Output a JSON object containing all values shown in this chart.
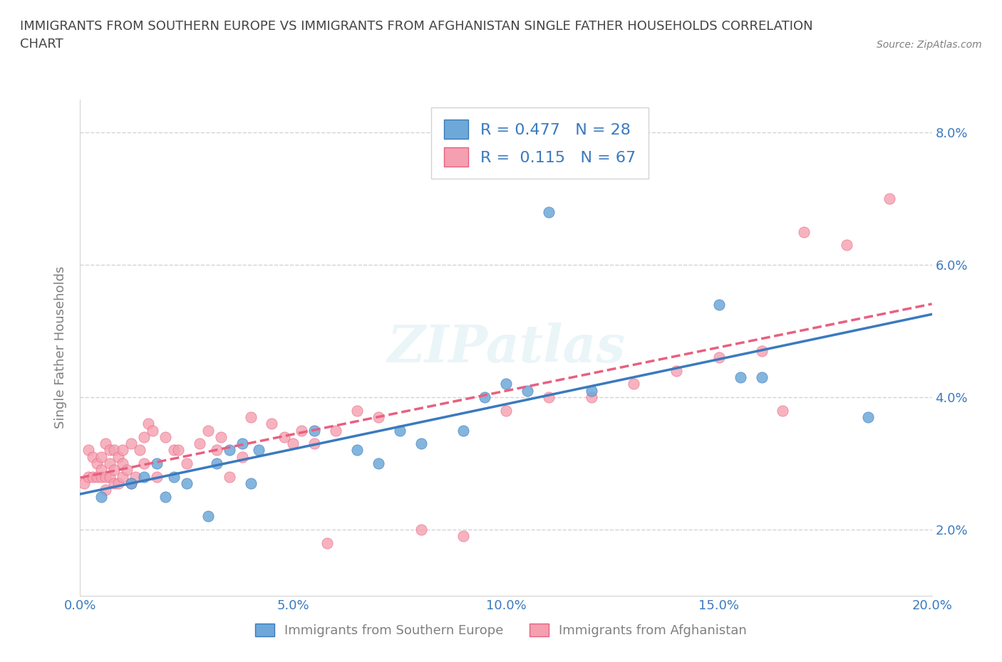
{
  "title": "IMMIGRANTS FROM SOUTHERN EUROPE VS IMMIGRANTS FROM AFGHANISTAN SINGLE FATHER HOUSEHOLDS CORRELATION\nCHART",
  "source": "Source: ZipAtlas.com",
  "xlabel_label": "Immigrants from Southern Europe",
  "ylabel_label": "Single Father Households",
  "legend_label_blue": "Immigrants from Southern Europe",
  "legend_label_pink": "Immigrants from Afghanistan",
  "R_blue": 0.477,
  "N_blue": 28,
  "R_pink": 0.115,
  "N_pink": 67,
  "xlim": [
    0.0,
    0.2
  ],
  "ylim": [
    0.01,
    0.085
  ],
  "xtick_labels": [
    "0.0%",
    "",
    "",
    "",
    "5.0%",
    "",
    "",
    "",
    "10.0%",
    "",
    "",
    "",
    "15.0%",
    "",
    "",
    "",
    "20.0%"
  ],
  "ytick_labels": [
    "2.0%",
    "4.0%",
    "6.0%",
    "8.0%"
  ],
  "ytick_values": [
    0.02,
    0.04,
    0.06,
    0.08
  ],
  "xtick_values": [
    0.0,
    0.0125,
    0.025,
    0.0375,
    0.05,
    0.0625,
    0.075,
    0.0875,
    0.1,
    0.1125,
    0.125,
    0.1375,
    0.15,
    0.1625,
    0.175,
    0.1875,
    0.2
  ],
  "blue_color": "#6ea8d8",
  "pink_color": "#f4a0b0",
  "blue_line_color": "#3a7abf",
  "pink_line_color": "#e86080",
  "watermark": "ZIPatlas",
  "blue_scatter_x": [
    0.005,
    0.012,
    0.015,
    0.018,
    0.02,
    0.022,
    0.025,
    0.03,
    0.032,
    0.035,
    0.038,
    0.04,
    0.042,
    0.055,
    0.065,
    0.07,
    0.075,
    0.08,
    0.09,
    0.095,
    0.1,
    0.105,
    0.11,
    0.12,
    0.15,
    0.155,
    0.16,
    0.185
  ],
  "blue_scatter_y": [
    0.025,
    0.027,
    0.028,
    0.03,
    0.025,
    0.028,
    0.027,
    0.022,
    0.03,
    0.032,
    0.033,
    0.027,
    0.032,
    0.035,
    0.032,
    0.03,
    0.035,
    0.033,
    0.035,
    0.04,
    0.042,
    0.041,
    0.068,
    0.041,
    0.054,
    0.043,
    0.043,
    0.037
  ],
  "pink_scatter_x": [
    0.001,
    0.002,
    0.002,
    0.003,
    0.003,
    0.004,
    0.004,
    0.005,
    0.005,
    0.005,
    0.006,
    0.006,
    0.006,
    0.007,
    0.007,
    0.007,
    0.008,
    0.008,
    0.008,
    0.009,
    0.009,
    0.01,
    0.01,
    0.01,
    0.011,
    0.012,
    0.012,
    0.013,
    0.014,
    0.015,
    0.015,
    0.016,
    0.017,
    0.018,
    0.02,
    0.022,
    0.023,
    0.025,
    0.028,
    0.03,
    0.032,
    0.033,
    0.035,
    0.038,
    0.04,
    0.045,
    0.048,
    0.05,
    0.052,
    0.055,
    0.058,
    0.06,
    0.065,
    0.07,
    0.08,
    0.09,
    0.1,
    0.11,
    0.12,
    0.13,
    0.14,
    0.15,
    0.16,
    0.165,
    0.17,
    0.18,
    0.19
  ],
  "pink_scatter_y": [
    0.027,
    0.028,
    0.032,
    0.028,
    0.031,
    0.028,
    0.03,
    0.028,
    0.029,
    0.031,
    0.026,
    0.028,
    0.033,
    0.028,
    0.03,
    0.032,
    0.027,
    0.029,
    0.032,
    0.027,
    0.031,
    0.028,
    0.03,
    0.032,
    0.029,
    0.027,
    0.033,
    0.028,
    0.032,
    0.03,
    0.034,
    0.036,
    0.035,
    0.028,
    0.034,
    0.032,
    0.032,
    0.03,
    0.033,
    0.035,
    0.032,
    0.034,
    0.028,
    0.031,
    0.037,
    0.036,
    0.034,
    0.033,
    0.035,
    0.033,
    0.018,
    0.035,
    0.038,
    0.037,
    0.02,
    0.019,
    0.038,
    0.04,
    0.04,
    0.042,
    0.044,
    0.046,
    0.047,
    0.038,
    0.065,
    0.063,
    0.07
  ]
}
